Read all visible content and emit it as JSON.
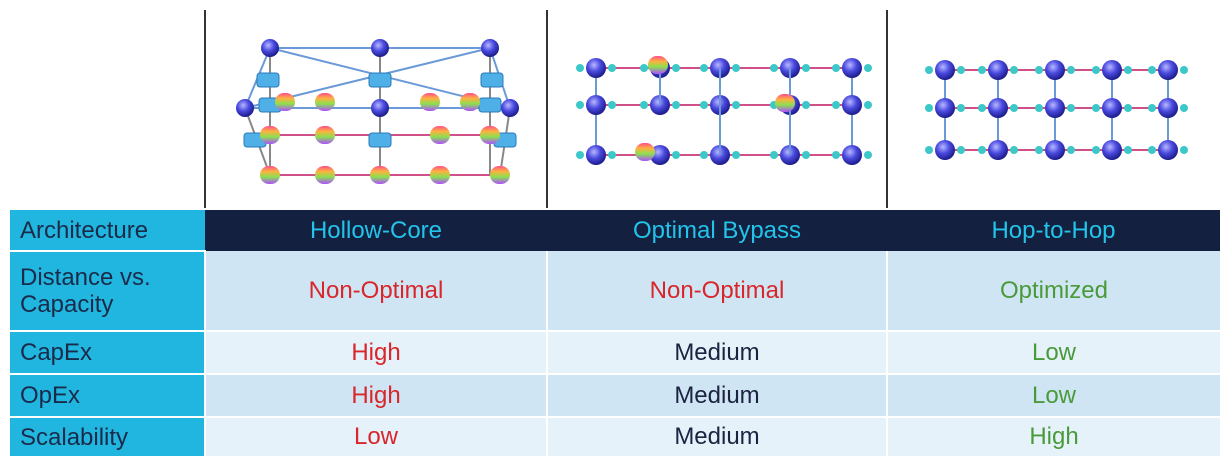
{
  "table": {
    "header": [
      "Architecture",
      "Hollow-Core",
      "Optimal Bypass",
      "Hop-to-Hop"
    ],
    "rows": [
      [
        "Distance vs. Capacity",
        "Non-Optimal",
        "Non-Optimal",
        "Optimized"
      ],
      [
        "CapEx",
        "High",
        "Medium",
        "Low"
      ],
      [
        "OpEx",
        "High",
        "Medium",
        "Low"
      ],
      [
        "Scalability",
        "Low",
        "Medium",
        "High"
      ]
    ]
  }
}
